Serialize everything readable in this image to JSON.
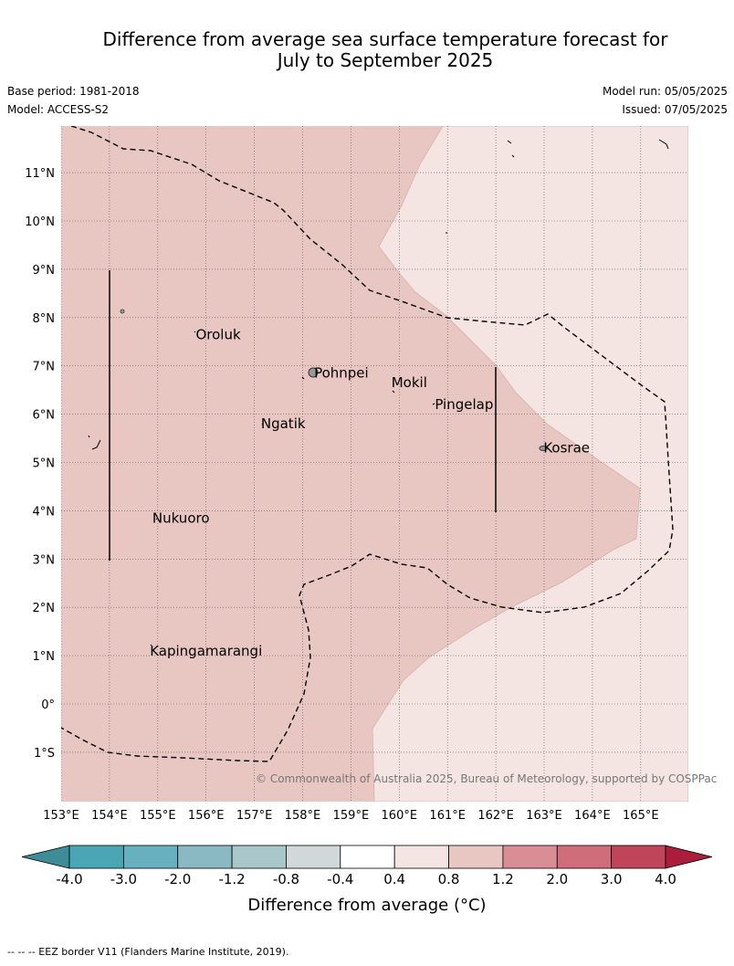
{
  "title_line1": "Difference from average sea surface temperature forecast for",
  "title_line2": "July to September 2025",
  "base_period": "Base period: 1981-2018",
  "model": "Model: ACCESS-S2",
  "model_run": "Model run: 05/05/2025",
  "issued": "Issued: 07/05/2025",
  "copyright": "© Commonwealth of Australia 2025, Bureau of Meteorology, supported by COSPPac",
  "footnote": "--  --  -- EEZ border V11 (Flanders Marine Institute, 2019).",
  "lat_labels": [
    "11°N",
    "10°N",
    "9°N",
    "8°N",
    "7°N",
    "6°N",
    "5°N",
    "4°N",
    "3°N",
    "2°N",
    "1°N",
    "0°",
    "1°S"
  ],
  "lon_labels": [
    "153°E",
    "154°E",
    "155°E",
    "156°E",
    "157°E",
    "158°E",
    "159°E",
    "160°E",
    "161°E",
    "162°E",
    "163°E",
    "164°E",
    "165°E"
  ],
  "places": [
    {
      "name": "Oroluk",
      "lon": 155.75,
      "lat": 7.65
    },
    {
      "name": "Pohnpei",
      "lon": 158.2,
      "lat": 6.85
    },
    {
      "name": "Mokil",
      "lon": 159.8,
      "lat": 6.65
    },
    {
      "name": "Pingelap",
      "lon": 160.7,
      "lat": 6.2
    },
    {
      "name": "Ngatik",
      "lon": 157.1,
      "lat": 5.8
    },
    {
      "name": "Kosrae",
      "lon": 162.95,
      "lat": 5.3
    },
    {
      "name": "Nukuoro",
      "lon": 154.85,
      "lat": 3.85
    },
    {
      "name": "Kapingamarangi",
      "lon": 154.8,
      "lat": 1.1
    }
  ],
  "colorbar": {
    "ticks": [
      "-4.0",
      "-3.0",
      "-2.0",
      "-1.2",
      "-0.8",
      "-0.4",
      "0.4",
      "0.8",
      "1.2",
      "2.0",
      "3.0",
      "4.0"
    ],
    "colors": [
      "#3f8c99",
      "#4aa6b4",
      "#68b0bf",
      "#8ab9c3",
      "#a9c6ca",
      "#d0d8da",
      "#ffffff",
      "#f4e4e2",
      "#e8c6c1",
      "#d98e96",
      "#cf6d7a",
      "#c0455a",
      "#ab1d3a"
    ],
    "label": "Difference from average (°C)"
  },
  "legend_colors": {
    "bin_0_4_0_8": "#f4e4e2",
    "bin_0_8_1_2": "#e8c6c1"
  }
}
